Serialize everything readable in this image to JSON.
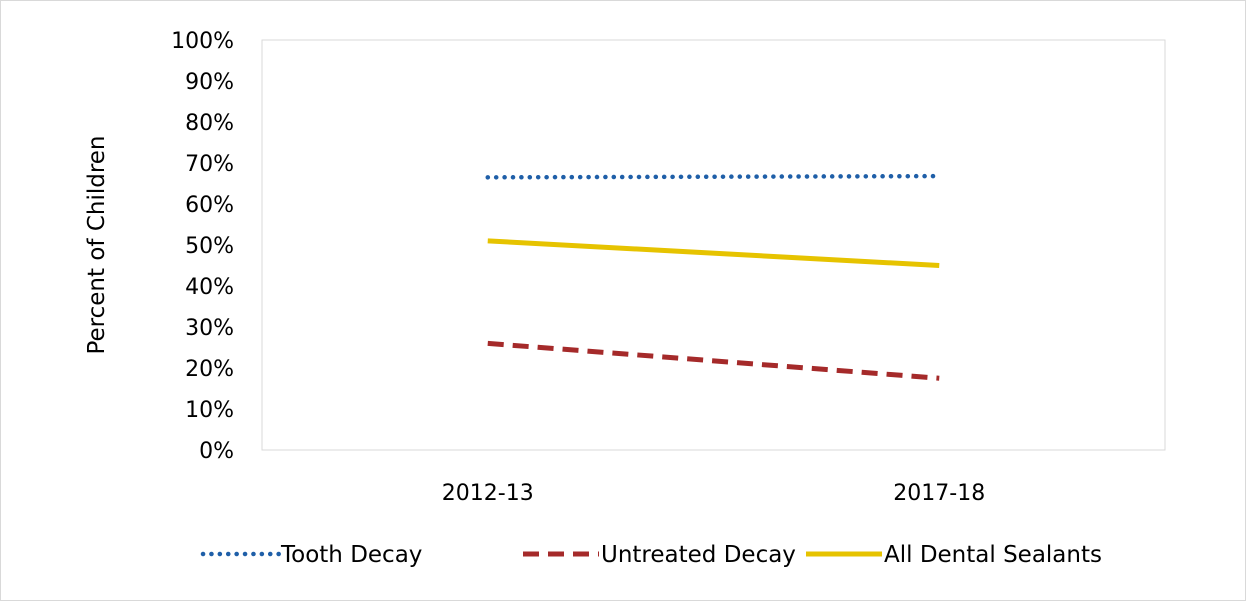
{
  "chart_data": {
    "type": "line",
    "title": "",
    "xlabel": "",
    "ylabel": "Percent of Children",
    "categories": [
      "2012-13",
      "2017-18"
    ],
    "y_ticks": [
      "0%",
      "10%",
      "20%",
      "30%",
      "40%",
      "50%",
      "60%",
      "70%",
      "80%",
      "90%",
      "100%"
    ],
    "ylim": [
      0,
      100
    ],
    "grid": false,
    "legend_position": "bottom",
    "series": [
      {
        "name": "Tooth Decay",
        "values": [
          66.5,
          66.8
        ],
        "color": "#1f5fa8",
        "style": "dotted"
      },
      {
        "name": "Untreated Decay",
        "values": [
          26.0,
          17.5
        ],
        "color": "#a52a2a",
        "style": "dashed"
      },
      {
        "name": "All Dental Sealants",
        "values": [
          51.0,
          45.0
        ],
        "color": "#e6c300",
        "style": "solid"
      }
    ]
  }
}
